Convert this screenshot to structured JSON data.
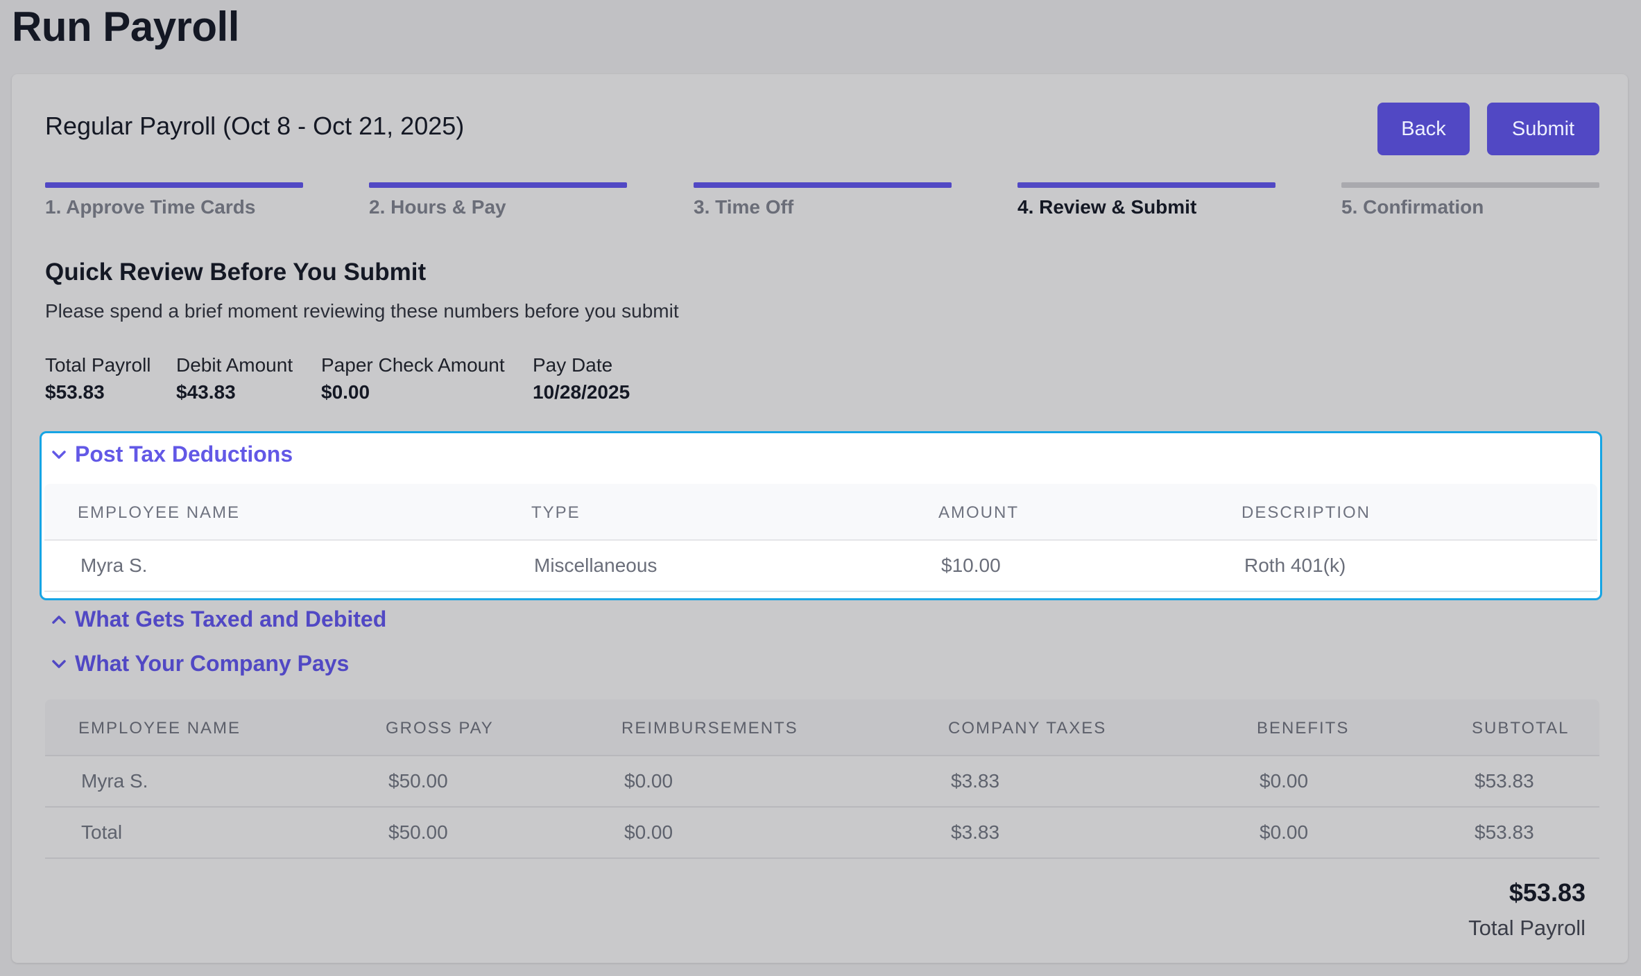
{
  "page": {
    "title": "Run Payroll"
  },
  "header": {
    "payroll_name": "Regular Payroll (Oct 8 - Oct 21, 2025)",
    "back_label": "Back",
    "submit_label": "Submit"
  },
  "steps": [
    {
      "label": "1. Approve Time Cards",
      "state": "complete"
    },
    {
      "label": "2. Hours & Pay",
      "state": "complete"
    },
    {
      "label": "3. Time Off",
      "state": "complete"
    },
    {
      "label": "4. Review & Submit",
      "state": "current"
    },
    {
      "label": "5. Confirmation",
      "state": "pending"
    }
  ],
  "review": {
    "heading": "Quick Review Before You Submit",
    "subtitle": "Please spend a brief moment reviewing these numbers before you submit",
    "stats": [
      {
        "label": "Total Payroll",
        "value": "$53.83"
      },
      {
        "label": "Debit Amount",
        "value": "$43.83"
      },
      {
        "label": "Paper Check Amount",
        "value": "$0.00"
      },
      {
        "label": "Pay Date",
        "value": "10/28/2025"
      }
    ]
  },
  "post_tax_deductions": {
    "title": "Post Tax Deductions",
    "expanded": true,
    "columns": [
      "EMPLOYEE NAME",
      "TYPE",
      "AMOUNT",
      "DESCRIPTION"
    ],
    "rows": [
      [
        "Myra S.",
        "Miscellaneous",
        "$10.00",
        "Roth 401(k)"
      ]
    ]
  },
  "taxed_debited": {
    "title": "What Gets Taxed and Debited",
    "expanded": false
  },
  "company_pays": {
    "title": "What Your Company Pays",
    "expanded": true,
    "columns": [
      "EMPLOYEE NAME",
      "GROSS PAY",
      "REIMBURSEMENTS",
      "COMPANY TAXES",
      "BENEFITS",
      "SUBTOTAL"
    ],
    "rows": [
      [
        "Myra S.",
        "$50.00",
        "$0.00",
        "$3.83",
        "$0.00",
        "$53.83"
      ],
      [
        "Total",
        "$50.00",
        "$0.00",
        "$3.83",
        "$0.00",
        "$53.83"
      ]
    ]
  },
  "grand_total": {
    "value": "$53.83",
    "label": "Total Payroll"
  },
  "colors": {
    "accent": "#5148c4",
    "highlight_border": "#16a4e4",
    "page_background": "#c1c1c4"
  }
}
